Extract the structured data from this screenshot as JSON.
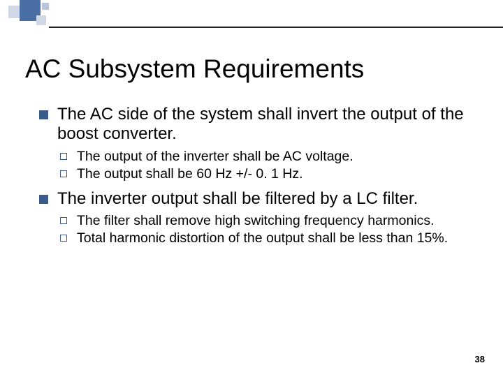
{
  "decoration": {
    "squares": [
      {
        "color": "#d0d8e8"
      },
      {
        "color": "#4a6fa5"
      },
      {
        "color": "#d0d8e8"
      },
      {
        "color": "#b8c4dc"
      }
    ],
    "line_color": "#222222"
  },
  "title": "AC Subsystem Requirements",
  "bullets": [
    {
      "text": "The AC side of the system shall invert the output of the boost converter.",
      "sub": [
        {
          "text": "The output of the inverter shall be AC voltage."
        },
        {
          "text": "The output shall be 60 Hz +/- 0. 1 Hz."
        }
      ]
    },
    {
      "text": "The inverter output shall be filtered by a LC filter.",
      "sub": [
        {
          "text": "The filter shall remove high switching frequency harmonics."
        },
        {
          "text": "Total harmonic distortion of the output shall be less than 15%."
        }
      ]
    }
  ],
  "page_number": "38",
  "styling": {
    "title_fontsize": 37,
    "level1_fontsize": 24,
    "level2_fontsize": 19.5,
    "bullet_color": "#3a5a8a",
    "background_color": "#ffffff",
    "text_color": "#000000",
    "page_number_fontsize": 13
  }
}
